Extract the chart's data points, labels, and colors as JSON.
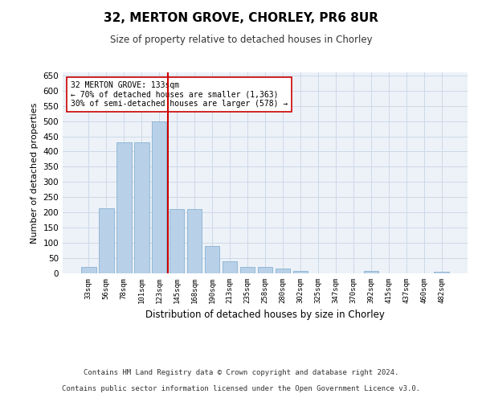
{
  "title": "32, MERTON GROVE, CHORLEY, PR6 8UR",
  "subtitle": "Size of property relative to detached houses in Chorley",
  "xlabel": "Distribution of detached houses by size in Chorley",
  "ylabel": "Number of detached properties",
  "categories": [
    "33sqm",
    "56sqm",
    "78sqm",
    "101sqm",
    "123sqm",
    "145sqm",
    "168sqm",
    "190sqm",
    "213sqm",
    "235sqm",
    "258sqm",
    "280sqm",
    "302sqm",
    "325sqm",
    "347sqm",
    "370sqm",
    "392sqm",
    "415sqm",
    "437sqm",
    "460sqm",
    "482sqm"
  ],
  "values": [
    20,
    215,
    430,
    430,
    500,
    210,
    210,
    90,
    40,
    20,
    20,
    15,
    8,
    0,
    0,
    0,
    8,
    0,
    0,
    0,
    5
  ],
  "bar_color": "#b8d0e8",
  "bar_edge_color": "#7aaacc",
  "vline_color": "#cc0000",
  "annotation_text": "32 MERTON GROVE: 133sqm\n← 70% of detached houses are smaller (1,363)\n30% of semi-detached houses are larger (578) →",
  "annotation_box_color": "#ffffff",
  "annotation_box_edge": "#cc0000",
  "grid_color": "#ccd9e8",
  "background_color": "#edf2f8",
  "footer_line1": "Contains HM Land Registry data © Crown copyright and database right 2024.",
  "footer_line2": "Contains public sector information licensed under the Open Government Licence v3.0.",
  "ylim": [
    0,
    660
  ],
  "yticks": [
    0,
    50,
    100,
    150,
    200,
    250,
    300,
    350,
    400,
    450,
    500,
    550,
    600,
    650
  ],
  "vline_pos": 4.5
}
